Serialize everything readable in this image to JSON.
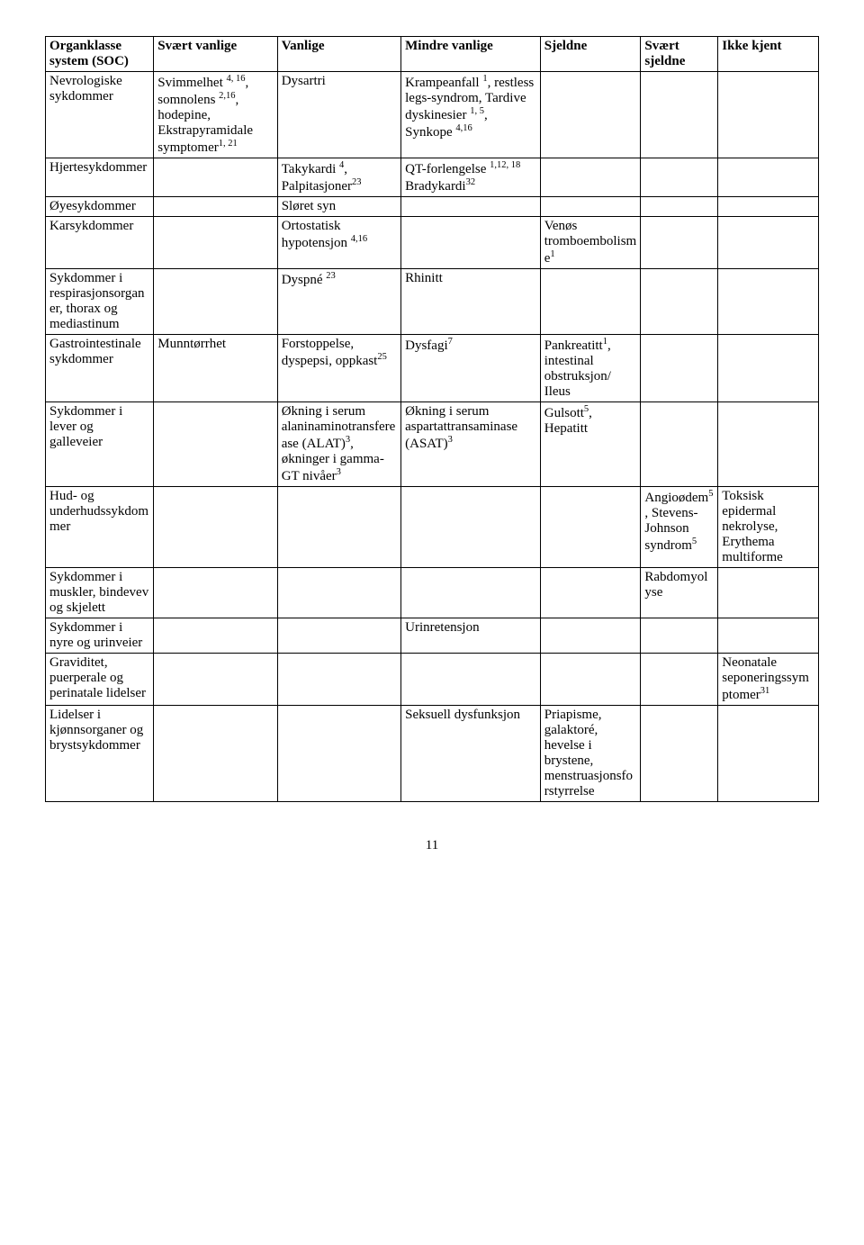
{
  "headers": {
    "soc": "Organklasse system (SOC)",
    "svaert_vanlige": "Svært vanlige",
    "vanlige": "Vanlige",
    "mindre_vanlige": "Mindre vanlige",
    "sjeldne": "Sjeldne",
    "svaert_sjeldne": "Svært sjeldne",
    "ikke_kjent": "Ikke kjent"
  },
  "rows": [
    {
      "soc": "Nevrologiske sykdommer",
      "svaert_vanlige": "Svimmelhet <sup>4, 16</sup>, somnolens <sup>2,16</sup>, hodepine, Ekstrapyramidale symptomer<sup>1, 21</sup>",
      "vanlige": "Dysartri",
      "mindre_vanlige": "Krampeanfall <sup>1</sup>, restless legs-syndrom, Tardive dyskinesier <sup>1, 5</sup>, Synkope <sup>4,16</sup>",
      "sjeldne": "",
      "svaert_sjeldne": "",
      "ikke_kjent": ""
    },
    {
      "soc": "Hjertesykdommer",
      "svaert_vanlige": "",
      "vanlige": "Takykardi <sup>4</sup>, Palpitasjoner<sup>23</sup>",
      "mindre_vanlige": "QT-forlengelse <sup>1,12, 18</sup><br>Bradykardi<sup>32</sup>",
      "sjeldne": "",
      "svaert_sjeldne": "",
      "ikke_kjent": ""
    },
    {
      "soc": "Øyesykdommer",
      "svaert_vanlige": "",
      "vanlige": "Sløret syn",
      "mindre_vanlige": "",
      "sjeldne": "",
      "svaert_sjeldne": "",
      "ikke_kjent": ""
    },
    {
      "soc": "Karsykdommer",
      "svaert_vanlige": "",
      "vanlige": "Ortostatisk hypotensjon <sup>4,16</sup>",
      "mindre_vanlige": "",
      "sjeldne": "Venøs tromboembolisme<sup>1</sup>",
      "svaert_sjeldne": "",
      "ikke_kjent": ""
    },
    {
      "soc": "Sykdommer i respirasjonsorganer, thorax og mediastinum",
      "svaert_vanlige": "",
      "vanlige": "Dyspné <sup>23</sup>",
      "mindre_vanlige": "Rhinitt",
      "sjeldne": "",
      "svaert_sjeldne": "",
      "ikke_kjent": ""
    },
    {
      "soc": "Gastrointestinale sykdommer",
      "svaert_vanlige": "Munntørrhet",
      "vanlige": "Forstoppelse, dyspepsi, oppkast<sup>25</sup>",
      "mindre_vanlige": "Dysfagi<sup>7</sup>",
      "sjeldne": "Pankreatitt<sup>1</sup>, intestinal obstruksjon/ Ileus",
      "svaert_sjeldne": "",
      "ikke_kjent": ""
    },
    {
      "soc": "Sykdommer i lever og galleveier",
      "svaert_vanlige": "",
      "vanlige": "Økning i serum alaninaminotransferease (ALAT)<sup>3</sup>, økninger i gamma-GT nivåer<sup>3</sup>",
      "mindre_vanlige": "Økning i serum aspartattransaminase (ASAT)<sup>3</sup>",
      "sjeldne": "Gulsott<sup>5</sup>, Hepatitt",
      "svaert_sjeldne": "",
      "ikke_kjent": ""
    },
    {
      "soc": "Hud- og underhudssykdommer",
      "svaert_vanlige": "",
      "vanlige": "",
      "mindre_vanlige": "",
      "sjeldne": "",
      "svaert_sjeldne": "Angioødem<sup>5</sup>, Stevens-Johnson syndrom<sup>5</sup>",
      "ikke_kjent": "Toksisk epidermal nekrolyse, Erythema multiforme"
    },
    {
      "soc": "Sykdommer i muskler, bindevev og skjelett",
      "svaert_vanlige": "",
      "vanlige": "",
      "mindre_vanlige": "",
      "sjeldne": "",
      "svaert_sjeldne": "Rabdomyolyse",
      "ikke_kjent": ""
    },
    {
      "soc": "Sykdommer i nyre og urinveier",
      "svaert_vanlige": "",
      "vanlige": "",
      "mindre_vanlige": "Urinretensjon",
      "sjeldne": "",
      "svaert_sjeldne": "",
      "ikke_kjent": ""
    },
    {
      "soc": "Graviditet, puerperale og perinatale lidelser",
      "svaert_vanlige": "",
      "vanlige": "",
      "mindre_vanlige": "",
      "sjeldne": "",
      "svaert_sjeldne": "",
      "ikke_kjent": "Neonatale seponeringssymptomer<sup>31</sup>"
    },
    {
      "soc": "Lidelser i kjønnsorganer og brystsykdommer",
      "svaert_vanlige": "",
      "vanlige": "",
      "mindre_vanlige": "Seksuell dysfunksjon",
      "sjeldne": "Priapisme, galaktoré, hevelse i brystene, menstruasjonsforstyrrelse",
      "svaert_sjeldne": "",
      "ikke_kjent": ""
    }
  ],
  "page_number": "11"
}
